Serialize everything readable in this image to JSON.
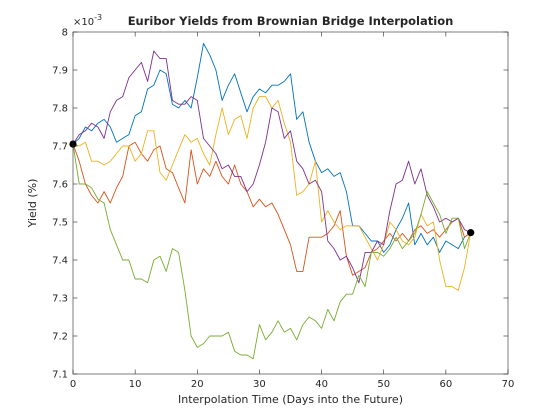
{
  "chart_data": {
    "type": "line",
    "title": "Euribor Yields from Brownian Bridge Interpolation",
    "xlabel": "Interpolation Time (Days into the Future)",
    "ylabel": "Yield (%)",
    "exponent_base": "×10",
    "exponent_power": "-3",
    "xlim": [
      0,
      70
    ],
    "ylim": [
      7.1,
      8.0
    ],
    "grid": false,
    "x_ticks": [
      0,
      10,
      20,
      30,
      40,
      50,
      60,
      70
    ],
    "x_tick_labels": [
      "0",
      "10",
      "20",
      "30",
      "40",
      "50",
      "60",
      "70"
    ],
    "y_ticks": [
      7.1,
      7.2,
      7.3,
      7.4,
      7.5,
      7.6,
      7.7,
      7.8,
      7.9,
      8.0
    ],
    "y_tick_labels": [
      "7.1",
      "7.2",
      "7.3",
      "7.4",
      "7.5",
      "7.6",
      "7.7",
      "7.8",
      "7.9",
      "8"
    ],
    "endpoints": [
      {
        "x": 0,
        "y": 7.705
      },
      {
        "x": 64,
        "y": 7.472
      }
    ],
    "series": [
      {
        "color": "#0072BD",
        "x": [
          0,
          1,
          2,
          3,
          4,
          5,
          6,
          7,
          8,
          9,
          10,
          11,
          12,
          13,
          14,
          15,
          16,
          17,
          18,
          19,
          20,
          21,
          22,
          23,
          24,
          25,
          26,
          27,
          28,
          29,
          30,
          31,
          32,
          33,
          34,
          35,
          36,
          37,
          38,
          39,
          40,
          41,
          42,
          43,
          44,
          45,
          46,
          47,
          48,
          49,
          50,
          51,
          52,
          53,
          54,
          55,
          56,
          57,
          58,
          59,
          60,
          61,
          62,
          63,
          64
        ],
        "y": [
          7.705,
          7.72,
          7.75,
          7.74,
          7.76,
          7.77,
          7.75,
          7.71,
          7.72,
          7.73,
          7.78,
          7.79,
          7.85,
          7.86,
          7.9,
          7.89,
          7.81,
          7.8,
          7.82,
          7.8,
          7.88,
          7.97,
          7.94,
          7.9,
          7.82,
          7.86,
          7.89,
          7.84,
          7.79,
          7.83,
          7.85,
          7.84,
          7.86,
          7.86,
          7.87,
          7.89,
          7.77,
          7.79,
          7.71,
          7.66,
          7.63,
          7.64,
          7.62,
          7.63,
          7.58,
          7.49,
          7.49,
          7.47,
          7.45,
          7.45,
          7.42,
          7.44,
          7.48,
          7.51,
          7.55,
          7.44,
          7.47,
          7.44,
          7.46,
          7.42,
          7.45,
          7.44,
          7.43,
          7.46,
          7.472
        ]
      },
      {
        "color": "#D95319",
        "x": [
          0,
          1,
          2,
          3,
          4,
          5,
          6,
          7,
          8,
          9,
          10,
          11,
          12,
          13,
          14,
          15,
          16,
          17,
          18,
          19,
          20,
          21,
          22,
          23,
          24,
          25,
          26,
          27,
          28,
          29,
          30,
          31,
          32,
          33,
          34,
          35,
          36,
          37,
          38,
          39,
          40,
          41,
          42,
          43,
          44,
          45,
          46,
          47,
          48,
          49,
          50,
          51,
          52,
          53,
          54,
          55,
          56,
          57,
          58,
          59,
          60,
          61,
          62,
          63,
          64
        ],
        "y": [
          7.705,
          7.66,
          7.6,
          7.57,
          7.55,
          7.58,
          7.55,
          7.59,
          7.62,
          7.7,
          7.71,
          7.68,
          7.66,
          7.69,
          7.7,
          7.64,
          7.63,
          7.59,
          7.55,
          7.69,
          7.6,
          7.64,
          7.62,
          7.66,
          7.62,
          7.6,
          7.65,
          7.6,
          7.58,
          7.54,
          7.56,
          7.54,
          7.55,
          7.52,
          7.48,
          7.44,
          7.37,
          7.37,
          7.46,
          7.46,
          7.46,
          7.47,
          7.49,
          7.53,
          7.41,
          7.36,
          7.37,
          7.38,
          7.42,
          7.43,
          7.45,
          7.47,
          7.45,
          7.47,
          7.45,
          7.48,
          7.49,
          7.47,
          7.48,
          7.46,
          7.48,
          7.5,
          7.51,
          7.46,
          7.472
        ]
      },
      {
        "color": "#EDB120",
        "x": [
          0,
          1,
          2,
          3,
          4,
          5,
          6,
          7,
          8,
          9,
          10,
          11,
          12,
          13,
          14,
          15,
          16,
          17,
          18,
          19,
          20,
          21,
          22,
          23,
          24,
          25,
          26,
          27,
          28,
          29,
          30,
          31,
          32,
          33,
          34,
          35,
          36,
          37,
          38,
          39,
          40,
          41,
          42,
          43,
          44,
          45,
          46,
          47,
          48,
          49,
          50,
          51,
          52,
          53,
          54,
          55,
          56,
          57,
          58,
          59,
          60,
          61,
          62,
          63,
          64
        ],
        "y": [
          7.705,
          7.7,
          7.71,
          7.66,
          7.66,
          7.65,
          7.66,
          7.68,
          7.7,
          7.7,
          7.66,
          7.68,
          7.74,
          7.74,
          7.63,
          7.61,
          7.65,
          7.69,
          7.73,
          7.71,
          7.72,
          7.68,
          7.65,
          7.73,
          7.8,
          7.73,
          7.77,
          7.78,
          7.72,
          7.8,
          7.83,
          7.83,
          7.8,
          7.82,
          7.76,
          7.71,
          7.57,
          7.58,
          7.6,
          7.66,
          7.5,
          7.53,
          7.5,
          7.48,
          7.49,
          7.49,
          7.49,
          7.46,
          7.43,
          7.4,
          7.44,
          7.5,
          7.48,
          7.45,
          7.44,
          7.46,
          7.52,
          7.49,
          7.5,
          7.4,
          7.33,
          7.33,
          7.32,
          7.38,
          7.472
        ]
      },
      {
        "color": "#7E2F8E",
        "x": [
          0,
          1,
          2,
          3,
          4,
          5,
          6,
          7,
          8,
          9,
          10,
          11,
          12,
          13,
          14,
          15,
          16,
          17,
          18,
          19,
          20,
          21,
          22,
          23,
          24,
          25,
          26,
          27,
          28,
          29,
          30,
          31,
          32,
          33,
          34,
          35,
          36,
          37,
          38,
          39,
          40,
          41,
          42,
          43,
          44,
          45,
          46,
          47,
          48,
          49,
          50,
          51,
          52,
          53,
          54,
          55,
          56,
          57,
          58,
          59,
          60,
          61,
          62,
          63,
          64
        ],
        "y": [
          7.705,
          7.73,
          7.74,
          7.76,
          7.75,
          7.72,
          7.79,
          7.82,
          7.83,
          7.88,
          7.9,
          7.92,
          7.87,
          7.95,
          7.93,
          7.93,
          7.82,
          7.81,
          7.81,
          7.83,
          7.82,
          7.72,
          7.7,
          7.68,
          7.64,
          7.65,
          7.62,
          7.62,
          7.58,
          7.6,
          7.65,
          7.71,
          7.8,
          7.79,
          7.72,
          7.74,
          7.66,
          7.64,
          7.6,
          7.61,
          7.58,
          7.45,
          7.43,
          7.4,
          7.41,
          7.38,
          7.34,
          7.42,
          7.42,
          7.45,
          7.44,
          7.53,
          7.6,
          7.61,
          7.66,
          7.6,
          7.64,
          7.57,
          7.54,
          7.5,
          7.51,
          7.5,
          7.51,
          7.48,
          7.472
        ]
      },
      {
        "color": "#77AC30",
        "x": [
          0,
          1,
          2,
          3,
          4,
          5,
          6,
          7,
          8,
          9,
          10,
          11,
          12,
          13,
          14,
          15,
          16,
          17,
          18,
          19,
          20,
          21,
          22,
          23,
          24,
          25,
          26,
          27,
          28,
          29,
          30,
          31,
          32,
          33,
          34,
          35,
          36,
          37,
          38,
          39,
          40,
          41,
          42,
          43,
          44,
          45,
          46,
          47,
          48,
          49,
          50,
          51,
          52,
          53,
          54,
          55,
          56,
          57,
          58,
          59,
          60,
          61,
          62,
          63,
          64
        ],
        "y": [
          7.705,
          7.6,
          7.6,
          7.59,
          7.56,
          7.55,
          7.48,
          7.44,
          7.4,
          7.4,
          7.35,
          7.35,
          7.34,
          7.4,
          7.41,
          7.37,
          7.43,
          7.42,
          7.32,
          7.2,
          7.17,
          7.18,
          7.2,
          7.2,
          7.2,
          7.21,
          7.16,
          7.15,
          7.15,
          7.14,
          7.23,
          7.19,
          7.21,
          7.24,
          7.21,
          7.22,
          7.19,
          7.23,
          7.25,
          7.24,
          7.22,
          7.27,
          7.24,
          7.29,
          7.31,
          7.31,
          7.36,
          7.33,
          7.42,
          7.42,
          7.41,
          7.43,
          7.46,
          7.43,
          7.45,
          7.47,
          7.52,
          7.58,
          7.55,
          7.52,
          7.47,
          7.51,
          7.51,
          7.43,
          7.472
        ]
      }
    ]
  }
}
